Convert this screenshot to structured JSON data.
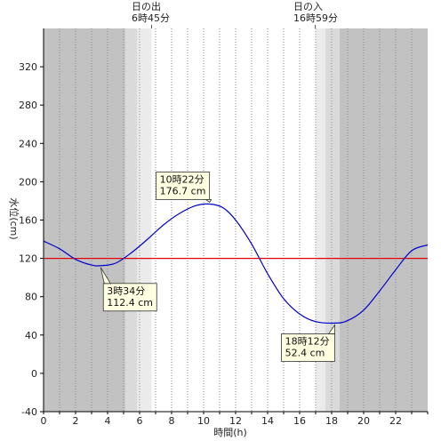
{
  "chart_data": {
    "type": "line",
    "xlabel": "時間(h)",
    "ylabel": "水位(cm)",
    "xlim": [
      0,
      24
    ],
    "ylim": [
      -40,
      360
    ],
    "x_ticks": [
      0,
      2,
      4,
      6,
      8,
      10,
      12,
      14,
      16,
      18,
      20,
      22
    ],
    "y_ticks": [
      -40,
      0,
      40,
      80,
      120,
      160,
      200,
      240,
      280,
      320
    ],
    "grid": "vertical-dotted",
    "reference_line": {
      "value": 120,
      "color": "#e00000"
    },
    "sunrise": {
      "label": "日の出",
      "time": "6時45分",
      "hour": 6.75
    },
    "sunset": {
      "label": "日の入",
      "time": "16時59分",
      "hour": 16.98
    },
    "shading": {
      "night": [
        [
          0,
          5.1
        ],
        [
          18.5,
          24
        ]
      ],
      "twilight": [
        [
          5.1,
          5.85
        ],
        [
          17.6,
          18.5
        ]
      ],
      "dusk": [
        [
          5.85,
          6.75
        ],
        [
          16.98,
          17.6
        ]
      ],
      "colors": {
        "night": "#c2c2c2",
        "twilight": "#dadada",
        "dusk": "#ebebeb",
        "day": "#ffffff"
      }
    },
    "series": [
      {
        "color": "#0000cc",
        "x": [
          0,
          1,
          2,
          3,
          3.57,
          4.5,
          5.5,
          6.5,
          7.5,
          8.5,
          9.5,
          10.37,
          11.2,
          12,
          13,
          14,
          15,
          16,
          17,
          18.2,
          19,
          20,
          21,
          22,
          23,
          24
        ],
        "y": [
          138,
          130,
          119,
          113,
          112.4,
          115,
          126,
          140,
          155,
          167,
          175,
          176.7,
          173,
          160,
          135,
          104,
          78,
          62,
          54,
          52.4,
          55,
          66,
          86,
          108,
          128,
          134
        ]
      }
    ],
    "annotations": [
      {
        "hour": 10.37,
        "value": 176.7,
        "time": "10時22分",
        "level": "176.7 cm"
      },
      {
        "hour": 3.57,
        "value": 112.4,
        "time": "3時34分",
        "level": "112.4 cm"
      },
      {
        "hour": 18.2,
        "value": 52.4,
        "time": "18時12分",
        "level": "52.4 cm"
      }
    ]
  }
}
